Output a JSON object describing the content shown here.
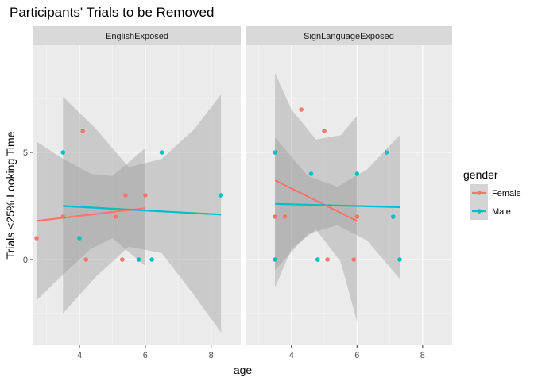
{
  "chart_data": {
    "type": "scatter",
    "title": "Participants' Trials to be Removed",
    "xlabel": "age",
    "ylabel": "Trials <25% Looking Time",
    "xlim": [
      2.6,
      8.9
    ],
    "ylim": [
      -4,
      10
    ],
    "x_ticks": [
      4,
      6,
      8
    ],
    "y_ticks": [
      0,
      5
    ],
    "grid": true,
    "legend": {
      "title": "gender",
      "position": "right",
      "entries": [
        {
          "name": "Female",
          "color": "#F8766D"
        },
        {
          "name": "Male",
          "color": "#00BFC4"
        }
      ]
    },
    "facets": [
      {
        "label": "EnglishExposed",
        "series": [
          {
            "name": "Female",
            "color": "#F8766D",
            "points": [
              [
                2.7,
                1
              ],
              [
                3.5,
                2
              ],
              [
                4.1,
                6
              ],
              [
                4.2,
                0
              ],
              [
                5.1,
                2
              ],
              [
                5.3,
                0
              ],
              [
                5.4,
                3
              ],
              [
                6.0,
                3
              ]
            ],
            "fit": {
              "x": [
                2.7,
                6.0
              ],
              "y": [
                1.8,
                2.4
              ]
            },
            "band": {
              "x": [
                2.7,
                3.5,
                4.35,
                5.0,
                6.0
              ],
              "upper": [
                5.5,
                4.7,
                4.0,
                3.9,
                5.2
              ],
              "lower": [
                -1.9,
                -0.7,
                0.5,
                1.0,
                -0.3
              ]
            }
          },
          {
            "name": "Male",
            "color": "#00BFC4",
            "points": [
              [
                3.5,
                5
              ],
              [
                4.0,
                1
              ],
              [
                5.8,
                0
              ],
              [
                6.2,
                0
              ],
              [
                6.5,
                5
              ],
              [
                8.3,
                3
              ]
            ],
            "fit": {
              "x": [
                3.5,
                8.3
              ],
              "y": [
                2.5,
                2.1
              ]
            },
            "band": {
              "x": [
                3.5,
                4.5,
                5.5,
                6.5,
                7.5,
                8.3
              ],
              "upper": [
                7.6,
                6.1,
                4.3,
                4.7,
                6.1,
                7.7
              ],
              "lower": [
                -2.5,
                -0.8,
                0.6,
                0.3,
                -1.7,
                -3.4
              ]
            }
          }
        ]
      },
      {
        "label": "SignLanguageExposed",
        "series": [
          {
            "name": "Female",
            "color": "#F8766D",
            "points": [
              [
                3.5,
                2
              ],
              [
                3.8,
                2
              ],
              [
                4.3,
                7
              ],
              [
                5.0,
                6
              ],
              [
                5.1,
                0
              ],
              [
                5.9,
                0
              ],
              [
                6.0,
                2
              ]
            ],
            "fit": {
              "x": [
                3.5,
                6.0
              ],
              "y": [
                3.7,
                1.8
              ]
            },
            "band": {
              "x": [
                3.5,
                4.0,
                4.75,
                5.5,
                6.0
              ],
              "upper": [
                8.7,
                7.0,
                5.6,
                5.8,
                6.7
              ],
              "lower": [
                -1.3,
                0.5,
                1.4,
                -0.1,
                -2.9
              ]
            }
          },
          {
            "name": "Male",
            "color": "#00BFC4",
            "points": [
              [
                3.5,
                5
              ],
              [
                3.5,
                0
              ],
              [
                4.6,
                4
              ],
              [
                4.8,
                0
              ],
              [
                6.0,
                4
              ],
              [
                6.9,
                5
              ],
              [
                7.1,
                2
              ],
              [
                7.3,
                0
              ]
            ],
            "fit": {
              "x": [
                3.5,
                7.3
              ],
              "y": [
                2.6,
                2.45
              ]
            },
            "band": {
              "x": [
                3.5,
                4.5,
                5.4,
                6.3,
                7.3
              ],
              "upper": [
                5.7,
                3.9,
                3.4,
                4.2,
                5.8
              ],
              "lower": [
                -0.5,
                1.2,
                1.6,
                0.9,
                -0.9
              ]
            }
          }
        ]
      }
    ]
  }
}
